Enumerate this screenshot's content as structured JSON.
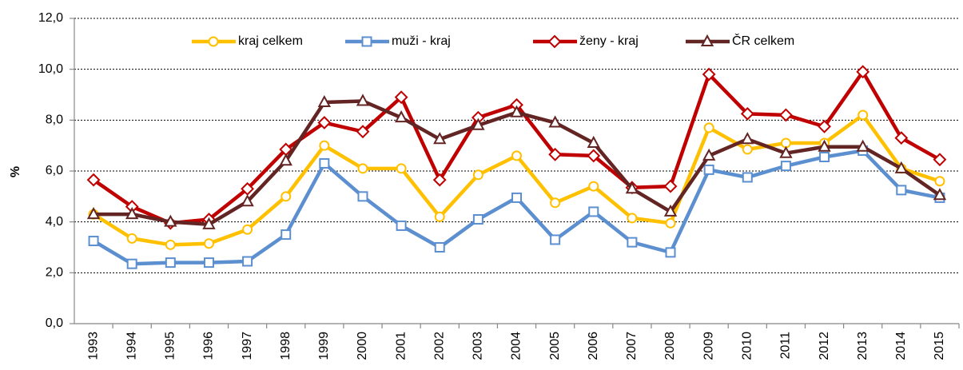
{
  "chart_data": {
    "type": "line",
    "y_label": "%",
    "categories": [
      "1993",
      "1994",
      "1995",
      "1996",
      "1997",
      "1998",
      "1999",
      "2000",
      "2001",
      "2002",
      "2003",
      "2004",
      "2005",
      "2006",
      "2007",
      "2008",
      "2009",
      "2010",
      "2011",
      "2012",
      "2013",
      "2014",
      "2015"
    ],
    "series": [
      {
        "name": "kraj celkem",
        "color": "#ffc000",
        "marker": "circle",
        "values": [
          4.3,
          3.35,
          3.1,
          3.15,
          3.7,
          5.0,
          7.0,
          6.1,
          6.1,
          4.2,
          5.85,
          6.6,
          4.75,
          5.4,
          4.15,
          3.95,
          7.7,
          6.85,
          7.1,
          7.1,
          8.2,
          6.1,
          5.6
        ]
      },
      {
        "name": "muži - kraj",
        "color": "#5b8fd0",
        "marker": "square",
        "values": [
          3.25,
          2.35,
          2.4,
          2.4,
          2.45,
          3.5,
          6.3,
          5.0,
          3.85,
          3.0,
          4.1,
          4.95,
          3.3,
          4.4,
          3.2,
          2.8,
          6.05,
          5.75,
          6.2,
          6.55,
          6.8,
          5.25,
          4.95
        ]
      },
      {
        "name": "ženy - kraj",
        "color": "#c00000",
        "marker": "diamond",
        "values": [
          5.65,
          4.6,
          3.95,
          4.1,
          5.3,
          6.85,
          7.9,
          7.55,
          8.9,
          5.65,
          8.1,
          8.6,
          6.65,
          6.6,
          5.35,
          5.4,
          9.8,
          8.25,
          8.2,
          7.75,
          9.9,
          7.3,
          6.45
        ]
      },
      {
        "name": "ČR celkem",
        "color": "#632523",
        "marker": "triangle",
        "values": [
          4.3,
          4.3,
          4.0,
          3.9,
          4.8,
          6.4,
          8.7,
          8.75,
          8.1,
          7.25,
          7.8,
          8.3,
          7.9,
          7.1,
          5.3,
          4.4,
          6.6,
          7.25,
          6.7,
          6.95,
          6.95,
          6.1,
          5.05
        ]
      }
    ],
    "ylim": [
      0,
      12
    ],
    "yticks": [
      {
        "value": 0,
        "label": "0,0"
      },
      {
        "value": 2,
        "label": "2,0"
      },
      {
        "value": 4,
        "label": "4,0"
      },
      {
        "value": 6,
        "label": "6,0"
      },
      {
        "value": 8,
        "label": "8,0"
      },
      {
        "value": 10,
        "label": "10,0"
      },
      {
        "value": 12,
        "label": "12,0"
      }
    ],
    "grid": true,
    "legend": "top"
  }
}
